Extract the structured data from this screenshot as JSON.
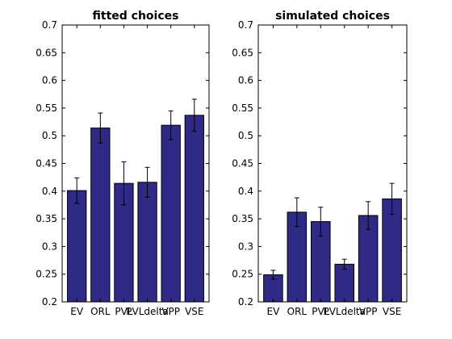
{
  "chart_data": [
    {
      "type": "bar",
      "title": "fitted choices",
      "categories": [
        "EV",
        "ORL",
        "PVL",
        "PVLdelta",
        "VPP",
        "VSE"
      ],
      "values": [
        0.401,
        0.514,
        0.414,
        0.416,
        0.519,
        0.537
      ],
      "error": [
        0.023,
        0.027,
        0.039,
        0.027,
        0.026,
        0.029
      ],
      "ylim": [
        0.2,
        0.7
      ],
      "yticks": [
        "0.2",
        "0.25",
        "0.3",
        "0.35",
        "0.4",
        "0.45",
        "0.5",
        "0.55",
        "0.6",
        "0.65",
        "0.7"
      ],
      "xlabel": "",
      "ylabel": "",
      "color": "#2e2a85",
      "grid": false
    },
    {
      "type": "bar",
      "title": "simulated choices",
      "categories": [
        "EV",
        "ORL",
        "PVL",
        "PVLdelta",
        "VPP",
        "VSE"
      ],
      "values": [
        0.249,
        0.362,
        0.345,
        0.268,
        0.356,
        0.386
      ],
      "error": [
        0.008,
        0.026,
        0.026,
        0.009,
        0.025,
        0.028
      ],
      "ylim": [
        0.2,
        0.7
      ],
      "yticks": [
        "0.2",
        "0.25",
        "0.3",
        "0.35",
        "0.4",
        "0.45",
        "0.5",
        "0.55",
        "0.6",
        "0.65",
        "0.7"
      ],
      "xlabel": "",
      "ylabel": "",
      "color": "#2e2a85",
      "grid": false
    }
  ]
}
